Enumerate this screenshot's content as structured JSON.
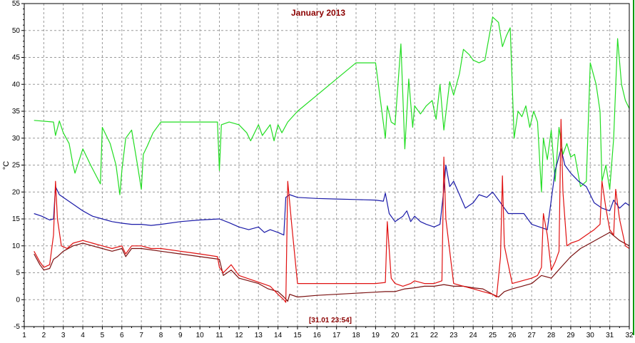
{
  "chart_data": {
    "type": "line",
    "title": "January 2013",
    "ylabel": "°C",
    "timestamp_label": "[31.01 23:54]",
    "xlim": [
      1,
      32
    ],
    "ylim": [
      -5,
      55
    ],
    "x_ticks": [
      "1",
      "2",
      "3",
      "4",
      "5",
      "6",
      "7",
      "8",
      "9",
      "10",
      "11",
      "12",
      "13",
      "14",
      "15",
      "16",
      "17",
      "18",
      "19",
      "20",
      "21",
      "22",
      "23",
      "24",
      "25",
      "26",
      "27",
      "28",
      "29",
      "30",
      "31",
      "32"
    ],
    "y_ticks": [
      "-5",
      "0",
      "5",
      "10",
      "15",
      "20",
      "25",
      "30",
      "35",
      "40",
      "45",
      "50",
      "55"
    ],
    "grid": true,
    "colors": {
      "green": "#22dd22",
      "blue": "#1a1aa8",
      "red": "#e01010",
      "darkred": "#7a1010",
      "frame": "#000000",
      "grid": "#9a9a9a"
    },
    "series": [
      {
        "color": "#22dd22",
        "x": [
          1.5,
          2.5,
          2.6,
          2.8,
          3.0,
          3.3,
          3.5,
          3.6,
          4.0,
          4.4,
          4.9,
          5.0,
          5.4,
          5.7,
          5.9,
          6.0,
          6.2,
          6.5,
          6.8,
          7.0,
          7.1,
          7.3,
          7.6,
          8.0,
          9.0,
          10.0,
          10.9,
          11.0,
          11.1,
          11.5,
          12.0,
          12.4,
          12.6,
          13.0,
          13.2,
          13.6,
          13.8,
          14.0,
          14.2,
          14.5,
          15.0,
          16.0,
          17.0,
          18.0,
          19.0,
          19.5,
          19.6,
          19.8,
          20.0,
          20.3,
          20.5,
          20.7,
          20.9,
          21.0,
          21.3,
          21.6,
          21.9,
          22.1,
          22.3,
          22.5,
          22.8,
          23.0,
          23.3,
          23.5,
          23.8,
          24.0,
          24.3,
          24.6,
          25.0,
          25.3,
          25.5,
          25.7,
          25.9,
          26.1,
          26.3,
          26.5,
          26.7,
          26.9,
          27.1,
          27.3,
          27.5,
          27.6,
          27.8,
          28.0,
          28.2,
          28.4,
          28.6,
          28.8,
          29.0,
          29.2,
          29.5,
          29.8,
          30.0,
          30.3,
          30.5,
          30.6,
          30.8,
          31.0,
          31.2,
          31.4,
          31.6,
          31.8,
          32.0
        ],
        "values": [
          33.3,
          33.0,
          30.5,
          33.2,
          31.0,
          29.0,
          25.0,
          23.5,
          28.0,
          25.0,
          21.5,
          32.0,
          29.0,
          25.0,
          19.5,
          24.0,
          30.0,
          31.5,
          25.0,
          20.5,
          27.0,
          28.5,
          31.0,
          33.0,
          33.0,
          33.0,
          33.0,
          24.0,
          32.5,
          33.0,
          32.5,
          31.0,
          29.5,
          32.5,
          30.5,
          32.5,
          29.5,
          32.5,
          31.0,
          33.0,
          35.0,
          38.0,
          41.0,
          44.0,
          44.0,
          30.0,
          36.0,
          33.0,
          32.5,
          47.5,
          28.0,
          41.0,
          32.0,
          36.0,
          34.5,
          36.0,
          37.0,
          33.5,
          40.0,
          31.5,
          40.5,
          38.0,
          42.0,
          46.5,
          45.5,
          44.5,
          44.0,
          44.5,
          52.5,
          51.5,
          47.0,
          49.0,
          50.5,
          30.0,
          35.0,
          34.0,
          36.0,
          32.0,
          35.0,
          33.0,
          20.0,
          30.0,
          26.0,
          31.5,
          22.0,
          32.0,
          27.0,
          29.0,
          26.5,
          27.0,
          21.0,
          22.0,
          44.0,
          40.0,
          35.0,
          22.0,
          25.0,
          20.5,
          30.0,
          48.5,
          40.0,
          37.0,
          35.5
        ]
      },
      {
        "color": "#1a1aa8",
        "x": [
          1.5,
          1.9,
          2.3,
          2.5,
          2.6,
          2.8,
          3.2,
          3.6,
          4.0,
          4.5,
          5.0,
          5.5,
          6.0,
          6.5,
          7.0,
          7.5,
          8.0,
          9.0,
          10.0,
          11.0,
          11.5,
          12.0,
          12.5,
          13.0,
          13.3,
          13.6,
          14.0,
          14.3,
          14.4,
          14.6,
          15.0,
          16.0,
          17.0,
          18.0,
          19.0,
          19.4,
          19.5,
          19.7,
          20.0,
          20.4,
          20.6,
          20.8,
          21.0,
          21.3,
          21.6,
          22.0,
          22.3,
          22.5,
          22.6,
          22.8,
          23.0,
          23.3,
          23.6,
          24.0,
          24.3,
          24.7,
          25.0,
          25.4,
          25.8,
          26.2,
          26.6,
          27.0,
          27.4,
          27.8,
          28.2,
          28.5,
          28.7,
          29.0,
          29.4,
          29.8,
          30.2,
          30.6,
          31.0,
          31.2,
          31.5,
          31.8,
          32.0
        ],
        "values": [
          16.0,
          15.5,
          14.8,
          15.0,
          21.0,
          19.5,
          18.5,
          17.5,
          16.5,
          15.5,
          15.0,
          14.5,
          14.2,
          14.0,
          14.0,
          13.8,
          14.0,
          14.5,
          14.8,
          15.0,
          14.3,
          13.5,
          13.0,
          13.5,
          12.5,
          13.0,
          12.5,
          12.0,
          19.0,
          19.5,
          19.0,
          18.8,
          18.7,
          18.6,
          18.5,
          18.3,
          19.8,
          16.0,
          14.5,
          15.5,
          16.5,
          14.5,
          15.5,
          14.5,
          14.0,
          13.5,
          14.0,
          20.5,
          25.0,
          21.0,
          22.0,
          19.5,
          17.0,
          18.0,
          19.5,
          19.0,
          20.0,
          18.0,
          16.0,
          16.0,
          16.0,
          14.0,
          13.5,
          13.0,
          24.0,
          28.0,
          25.0,
          23.5,
          22.0,
          21.0,
          18.0,
          17.0,
          16.5,
          18.5,
          17.0,
          18.0,
          17.5
        ]
      },
      {
        "color": "#e01010",
        "x": [
          1.5,
          1.8,
          2.0,
          2.3,
          2.5,
          2.6,
          2.7,
          2.9,
          3.2,
          3.5,
          4.0,
          4.5,
          5.0,
          5.5,
          6.0,
          6.2,
          6.5,
          7.0,
          7.5,
          8.0,
          9.0,
          10.0,
          10.9,
          11.0,
          11.2,
          11.6,
          12.0,
          12.4,
          12.8,
          13.2,
          13.6,
          14.0,
          14.3,
          14.4,
          14.5,
          14.7,
          15.0,
          16.0,
          17.0,
          18.0,
          19.0,
          19.5,
          19.6,
          19.8,
          20.0,
          20.4,
          20.8,
          21.0,
          21.5,
          22.0,
          22.4,
          22.5,
          22.6,
          23.0,
          23.5,
          24.0,
          24.5,
          25.0,
          25.2,
          25.4,
          25.5,
          25.6,
          26.0,
          26.5,
          27.0,
          27.3,
          27.5,
          27.6,
          27.8,
          28.0,
          28.2,
          28.4,
          28.5,
          28.6,
          28.8,
          29.0,
          29.4,
          29.8,
          30.2,
          30.5,
          30.6,
          30.8,
          31.0,
          31.2,
          31.3,
          31.5,
          31.8,
          32.0
        ],
        "values": [
          9.0,
          7.0,
          6.0,
          6.5,
          12.0,
          22.0,
          15.0,
          10.0,
          9.5,
          10.5,
          11.0,
          10.5,
          10.0,
          9.5,
          10.0,
          8.5,
          10.0,
          10.0,
          9.5,
          9.5,
          9.0,
          8.5,
          8.0,
          6.0,
          5.0,
          6.5,
          4.5,
          4.0,
          3.5,
          3.0,
          2.5,
          1.0,
          0.0,
          -0.5,
          22.0,
          14.0,
          3.0,
          3.0,
          3.0,
          3.0,
          3.0,
          3.2,
          14.5,
          4.0,
          3.0,
          2.5,
          3.0,
          3.5,
          3.0,
          3.0,
          3.5,
          26.5,
          15.0,
          3.0,
          2.5,
          2.0,
          1.5,
          1.0,
          0.5,
          8.0,
          23.0,
          10.0,
          3.0,
          3.5,
          4.0,
          4.5,
          6.0,
          16.0,
          12.0,
          5.5,
          7.0,
          9.0,
          33.5,
          20.0,
          10.0,
          10.5,
          11.0,
          12.0,
          13.0,
          14.0,
          22.0,
          17.0,
          13.0,
          12.0,
          20.5,
          15.0,
          10.0,
          9.5
        ]
      },
      {
        "color": "#7a1010",
        "x": [
          1.5,
          1.8,
          2.0,
          2.3,
          2.5,
          2.7,
          3.0,
          3.5,
          4.0,
          4.5,
          5.0,
          5.5,
          6.0,
          6.2,
          6.5,
          7.0,
          8.0,
          9.0,
          10.0,
          11.0,
          11.2,
          11.6,
          12.0,
          12.5,
          13.0,
          13.5,
          14.0,
          14.3,
          14.5,
          14.6,
          15.0,
          16.0,
          17.0,
          18.0,
          19.0,
          19.5,
          20.0,
          20.5,
          21.0,
          21.5,
          22.0,
          22.5,
          23.0,
          23.5,
          24.0,
          24.5,
          25.0,
          25.3,
          25.6,
          26.0,
          26.5,
          27.0,
          27.5,
          28.0,
          28.5,
          29.0,
          29.5,
          30.0,
          30.5,
          31.0,
          31.5,
          32.0
        ],
        "values": [
          8.5,
          6.5,
          5.5,
          5.8,
          7.5,
          8.0,
          9.0,
          10.0,
          10.5,
          10.0,
          9.5,
          9.0,
          9.5,
          8.0,
          9.5,
          9.5,
          9.0,
          8.5,
          8.0,
          7.5,
          4.5,
          5.5,
          4.0,
          3.5,
          3.0,
          2.0,
          1.5,
          0.5,
          -0.3,
          1.0,
          0.5,
          0.8,
          1.0,
          1.2,
          1.4,
          1.5,
          1.5,
          2.0,
          2.2,
          2.5,
          2.5,
          2.8,
          2.5,
          2.5,
          2.2,
          2.0,
          1.0,
          0.5,
          1.5,
          2.0,
          2.5,
          3.0,
          4.5,
          4.0,
          6.0,
          8.0,
          9.5,
          10.5,
          11.5,
          12.5,
          11.0,
          10.0
        ]
      }
    ]
  }
}
